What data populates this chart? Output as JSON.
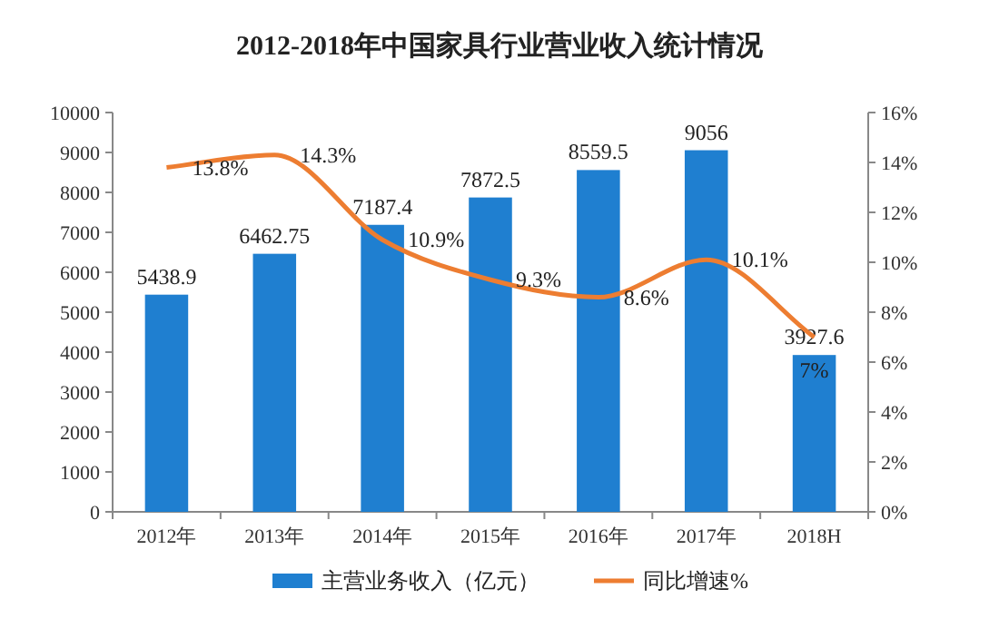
{
  "chart_data": {
    "type": "bar",
    "title": "2012-2018年中国家具行业营业收入统计情况",
    "categories": [
      "2012年",
      "2013年",
      "2014年",
      "2015年",
      "2016年",
      "2017年",
      "2018H"
    ],
    "series": [
      {
        "name": "主营业务收入（亿元）",
        "color": "#1f7fd0",
        "values": [
          5438.9,
          6462.75,
          7187.4,
          7872.5,
          8559.5,
          9056,
          3927.6
        ],
        "value_labels": [
          "5438.9",
          "6462.75",
          "7187.4",
          "7872.5",
          "8559.5",
          "9056",
          "3927.6"
        ]
      },
      {
        "name": "同比增速%",
        "type": "line",
        "axis": "y2",
        "color": "#ed7d31",
        "values": [
          13.8,
          14.3,
          10.9,
          9.3,
          8.6,
          10.1,
          7
        ],
        "value_labels": [
          "13.8%",
          "14.3%",
          "10.9%",
          "9.3%",
          "8.6%",
          "10.1%",
          "7%"
        ]
      }
    ],
    "ylim": [
      0,
      10000
    ],
    "yticks": [
      0,
      1000,
      2000,
      3000,
      4000,
      5000,
      6000,
      7000,
      8000,
      9000,
      10000
    ],
    "y2lim": [
      0,
      16
    ],
    "y2ticks": [
      {
        "value": 0,
        "label": "0%"
      },
      {
        "value": 2,
        "label": "2%"
      },
      {
        "value": 4,
        "label": "4%"
      },
      {
        "value": 6,
        "label": "6%"
      },
      {
        "value": 8,
        "label": "8%"
      },
      {
        "value": 10,
        "label": "10%"
      },
      {
        "value": 12,
        "label": "12%"
      },
      {
        "value": 14,
        "label": "14%"
      },
      {
        "value": 16,
        "label": "16%"
      }
    ],
    "grid": false,
    "legend": "bottom",
    "marker": "none",
    "line_style": "solid"
  }
}
